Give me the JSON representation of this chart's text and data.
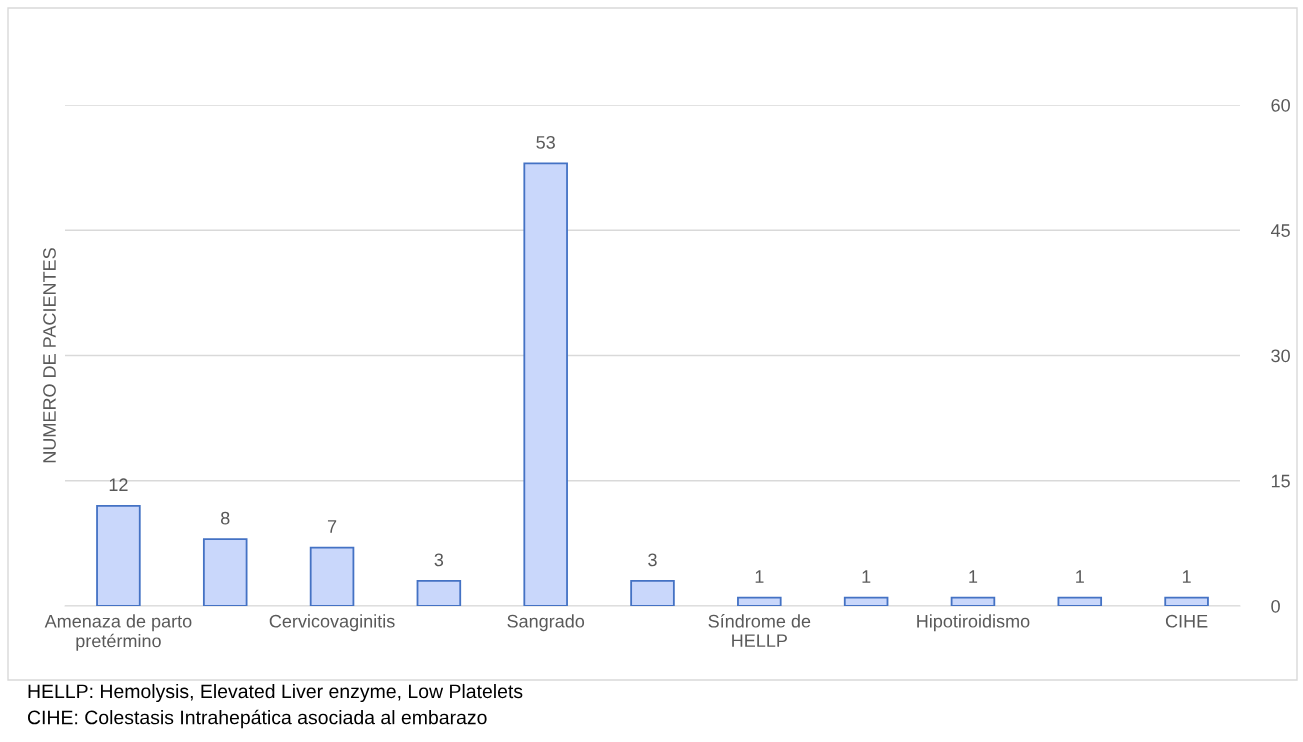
{
  "chart_data": {
    "type": "bar",
    "ylabel": "NUMERO DE PACIENTES",
    "categories": [
      "Amenaza de parto pretérmino",
      null,
      "Cervicovaginitis",
      null,
      "Sangrado",
      null,
      "Síndrome de HELLP",
      null,
      "Hipotiroidismo",
      null,
      "CIHE"
    ],
    "values": [
      12,
      8,
      7,
      3,
      53,
      3,
      1,
      1,
      1,
      1,
      1
    ],
    "color": "#c9d7fb",
    "ylim": [
      0,
      60
    ],
    "yticks": [
      0,
      15,
      30,
      45,
      60
    ],
    "grid": "y",
    "data_labels": true,
    "annotations": [
      "HELLP: Hemolysis, Elevated Liver enzyme, Low Platelets",
      "CIHE: Colestasis Intrahepática asociada al embarazo"
    ]
  }
}
